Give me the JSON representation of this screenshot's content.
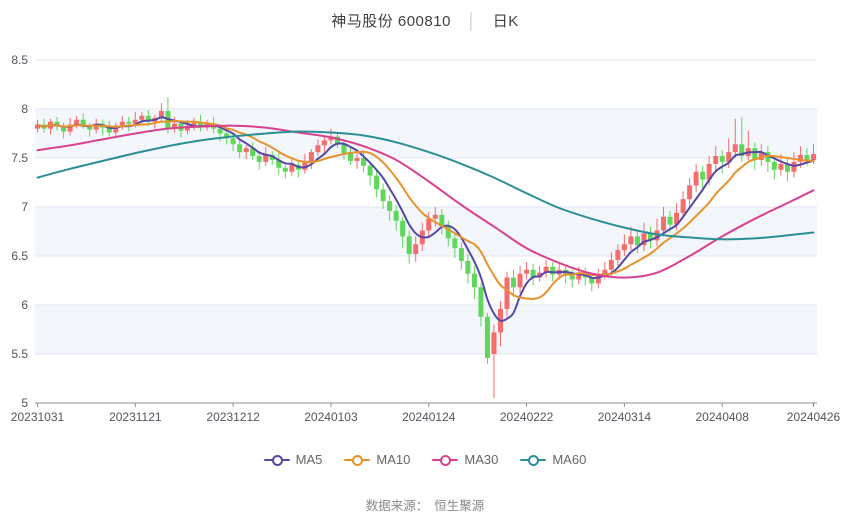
{
  "title": {
    "stock": "神马股份 600810",
    "separator": "│",
    "period": "日K"
  },
  "footer": {
    "label": "数据来源：",
    "source": "恒生聚源"
  },
  "legend": [
    {
      "label": "MA5",
      "color": "#5447a8"
    },
    {
      "label": "MA10",
      "color": "#e8922e"
    },
    {
      "label": "MA30",
      "color": "#d8418f"
    },
    {
      "label": "MA60",
      "color": "#2b8f96"
    }
  ],
  "colors": {
    "up_candle": "#f56c6c",
    "down_candle": "#5fd75a",
    "band_fill": "#f3f6fb",
    "grid_line": "#e0e6f1",
    "axis_line": "#8f8f8f",
    "tick_label": "#55555f",
    "title_text": "#404040",
    "separator_gray": "#c8c8c8",
    "legend_text": "#666666",
    "footer_text": "#8a8a8a"
  },
  "chart_data": {
    "type": "candlestick",
    "title": "神马股份 600810 日K",
    "ylim": [
      5,
      8.5
    ],
    "y_ticks": [
      "8.5",
      "8",
      "7.5",
      "7",
      "6.5",
      "6",
      "5.5",
      "5"
    ],
    "x_ticks": [
      "20231031",
      "20231121",
      "20231212",
      "20240103",
      "20240124",
      "20240222",
      "20240314",
      "20240408",
      "20240426"
    ],
    "x_tick_indices": [
      0,
      15,
      30,
      45,
      60,
      75,
      90,
      105,
      119
    ],
    "legend_position": "bottom",
    "grid": "horizontal-bands",
    "candles_ohlc": [
      [
        7.8,
        7.89,
        7.76,
        7.84
      ],
      [
        7.84,
        7.9,
        7.76,
        7.8
      ],
      [
        7.8,
        7.9,
        7.74,
        7.87
      ],
      [
        7.87,
        7.92,
        7.78,
        7.82
      ],
      [
        7.82,
        7.86,
        7.7,
        7.77
      ],
      [
        7.77,
        7.91,
        7.73,
        7.84
      ],
      [
        7.84,
        7.93,
        7.8,
        7.89
      ],
      [
        7.89,
        7.95,
        7.8,
        7.83
      ],
      [
        7.83,
        7.86,
        7.72,
        7.79
      ],
      [
        7.79,
        7.9,
        7.75,
        7.85
      ],
      [
        7.85,
        7.89,
        7.73,
        7.81
      ],
      [
        7.81,
        7.88,
        7.72,
        7.76
      ],
      [
        7.76,
        7.86,
        7.71,
        7.83
      ],
      [
        7.83,
        7.93,
        7.79,
        7.87
      ],
      [
        7.87,
        7.92,
        7.77,
        7.85
      ],
      [
        7.85,
        7.97,
        7.81,
        7.89
      ],
      [
        7.89,
        7.97,
        7.84,
        7.93
      ],
      [
        7.93,
        7.99,
        7.83,
        7.87
      ],
      [
        7.87,
        7.94,
        7.8,
        7.91
      ],
      [
        7.91,
        8.06,
        7.87,
        7.98
      ],
      [
        7.98,
        8.12,
        7.75,
        7.8
      ],
      [
        7.8,
        7.92,
        7.76,
        7.85
      ],
      [
        7.85,
        7.88,
        7.71,
        7.78
      ],
      [
        7.78,
        7.89,
        7.74,
        7.83
      ],
      [
        7.83,
        7.91,
        7.78,
        7.86
      ],
      [
        7.86,
        7.94,
        7.77,
        7.81
      ],
      [
        7.81,
        7.89,
        7.78,
        7.85
      ],
      [
        7.85,
        7.92,
        7.75,
        7.8
      ],
      [
        7.8,
        7.84,
        7.67,
        7.75
      ],
      [
        7.75,
        7.81,
        7.64,
        7.7
      ],
      [
        7.7,
        7.73,
        7.57,
        7.64
      ],
      [
        7.64,
        7.7,
        7.5,
        7.56
      ],
      [
        7.56,
        7.63,
        7.49,
        7.6
      ],
      [
        7.6,
        7.66,
        7.48,
        7.52
      ],
      [
        7.52,
        7.57,
        7.38,
        7.46
      ],
      [
        7.46,
        7.61,
        7.42,
        7.53
      ],
      [
        7.53,
        7.57,
        7.43,
        7.48
      ],
      [
        7.48,
        7.55,
        7.33,
        7.4
      ],
      [
        7.4,
        7.43,
        7.29,
        7.36
      ],
      [
        7.36,
        7.49,
        7.32,
        7.43
      ],
      [
        7.43,
        7.48,
        7.3,
        7.38
      ],
      [
        7.38,
        7.54,
        7.34,
        7.46
      ],
      [
        7.46,
        7.59,
        7.39,
        7.56
      ],
      [
        7.56,
        7.69,
        7.52,
        7.63
      ],
      [
        7.63,
        7.73,
        7.55,
        7.68
      ],
      [
        7.68,
        7.8,
        7.64,
        7.72
      ],
      [
        7.72,
        7.76,
        7.6,
        7.64
      ],
      [
        7.64,
        7.67,
        7.48,
        7.55
      ],
      [
        7.55,
        7.61,
        7.43,
        7.47
      ],
      [
        7.47,
        7.55,
        7.39,
        7.5
      ],
      [
        7.5,
        7.58,
        7.35,
        7.42
      ],
      [
        7.42,
        7.45,
        7.22,
        7.32
      ],
      [
        7.32,
        7.38,
        7.1,
        7.18
      ],
      [
        7.18,
        7.24,
        6.98,
        7.06
      ],
      [
        7.06,
        7.12,
        6.86,
        6.96
      ],
      [
        6.96,
        7.02,
        6.76,
        6.86
      ],
      [
        6.86,
        6.9,
        6.58,
        6.7
      ],
      [
        6.7,
        6.76,
        6.42,
        6.52
      ],
      [
        6.52,
        6.7,
        6.44,
        6.62
      ],
      [
        6.62,
        6.84,
        6.55,
        6.76
      ],
      [
        6.76,
        6.95,
        6.68,
        6.88
      ],
      [
        6.88,
        7.0,
        6.8,
        6.92
      ],
      [
        6.92,
        6.98,
        6.72,
        6.8
      ],
      [
        6.8,
        6.86,
        6.6,
        6.68
      ],
      [
        6.68,
        6.74,
        6.48,
        6.58
      ],
      [
        6.58,
        6.64,
        6.36,
        6.45
      ],
      [
        6.45,
        6.52,
        6.22,
        6.32
      ],
      [
        6.32,
        6.4,
        6.06,
        6.18
      ],
      [
        6.18,
        6.22,
        5.78,
        5.88
      ],
      [
        5.88,
        5.92,
        5.4,
        5.46
      ],
      [
        5.5,
        5.8,
        5.05,
        5.72
      ],
      [
        5.72,
        6.04,
        5.58,
        5.96
      ],
      [
        5.96,
        6.34,
        5.88,
        6.28
      ],
      [
        6.28,
        6.36,
        6.08,
        6.18
      ],
      [
        6.18,
        6.4,
        6.12,
        6.32
      ],
      [
        6.32,
        6.44,
        6.26,
        6.36
      ],
      [
        6.36,
        6.42,
        6.2,
        6.28
      ],
      [
        6.28,
        6.4,
        6.24,
        6.33
      ],
      [
        6.33,
        6.46,
        6.28,
        6.39
      ],
      [
        6.39,
        6.44,
        6.24,
        6.31
      ],
      [
        6.31,
        6.42,
        6.26,
        6.36
      ],
      [
        6.36,
        6.41,
        6.22,
        6.3
      ],
      [
        6.3,
        6.36,
        6.18,
        6.26
      ],
      [
        6.26,
        6.39,
        6.21,
        6.33
      ],
      [
        6.33,
        6.38,
        6.2,
        6.28
      ],
      [
        6.28,
        6.33,
        6.14,
        6.22
      ],
      [
        6.22,
        6.37,
        6.17,
        6.31
      ],
      [
        6.31,
        6.44,
        6.26,
        6.36
      ],
      [
        6.36,
        6.54,
        6.3,
        6.46
      ],
      [
        6.46,
        6.62,
        6.4,
        6.56
      ],
      [
        6.56,
        6.72,
        6.5,
        6.62
      ],
      [
        6.62,
        6.8,
        6.56,
        6.7
      ],
      [
        6.7,
        6.76,
        6.53,
        6.61
      ],
      [
        6.61,
        6.84,
        6.55,
        6.73
      ],
      [
        6.73,
        6.8,
        6.58,
        6.66
      ],
      [
        6.66,
        6.88,
        6.6,
        6.76
      ],
      [
        6.76,
        7.0,
        6.7,
        6.9
      ],
      [
        6.9,
        6.96,
        6.74,
        6.82
      ],
      [
        6.82,
        7.04,
        6.76,
        6.94
      ],
      [
        6.94,
        7.16,
        6.88,
        7.08
      ],
      [
        7.08,
        7.3,
        7.0,
        7.22
      ],
      [
        7.22,
        7.44,
        7.15,
        7.36
      ],
      [
        7.36,
        7.42,
        7.18,
        7.28
      ],
      [
        7.28,
        7.52,
        7.22,
        7.44
      ],
      [
        7.44,
        7.62,
        7.36,
        7.52
      ],
      [
        7.52,
        7.58,
        7.34,
        7.46
      ],
      [
        7.46,
        7.7,
        7.4,
        7.56
      ],
      [
        7.56,
        7.9,
        7.5,
        7.64
      ],
      [
        7.64,
        7.92,
        7.46,
        7.52
      ],
      [
        7.52,
        7.78,
        7.48,
        7.6
      ],
      [
        7.6,
        7.66,
        7.38,
        7.48
      ],
      [
        7.48,
        7.64,
        7.42,
        7.56
      ],
      [
        7.56,
        7.62,
        7.36,
        7.46
      ],
      [
        7.46,
        7.52,
        7.28,
        7.38
      ],
      [
        7.38,
        7.54,
        7.32,
        7.44
      ],
      [
        7.44,
        7.5,
        7.26,
        7.36
      ],
      [
        7.36,
        7.56,
        7.3,
        7.46
      ],
      [
        7.46,
        7.62,
        7.4,
        7.53
      ],
      [
        7.53,
        7.6,
        7.42,
        7.48
      ],
      [
        7.48,
        7.64,
        7.44,
        7.54
      ]
    ],
    "ma_computed_from_close": [
      "MA5",
      "MA10"
    ],
    "ma_sampled": {
      "indices": [
        0,
        5,
        10,
        15,
        20,
        25,
        30,
        35,
        40,
        45,
        50,
        55,
        60,
        65,
        70,
        75,
        80,
        85,
        90,
        95,
        100,
        105,
        110,
        115,
        119
      ],
      "MA30": [
        7.58,
        7.63,
        7.69,
        7.75,
        7.8,
        7.82,
        7.83,
        7.81,
        7.76,
        7.71,
        7.62,
        7.48,
        7.26,
        7.02,
        6.8,
        6.58,
        6.43,
        6.32,
        6.28,
        6.33,
        6.5,
        6.7,
        6.88,
        7.04,
        7.17
      ],
      "MA60": [
        7.3,
        7.39,
        7.47,
        7.55,
        7.62,
        7.68,
        7.72,
        7.75,
        7.77,
        7.76,
        7.73,
        7.66,
        7.56,
        7.44,
        7.3,
        7.14,
        6.99,
        6.88,
        6.79,
        6.72,
        6.69,
        6.67,
        6.68,
        6.71,
        6.74
      ]
    }
  }
}
